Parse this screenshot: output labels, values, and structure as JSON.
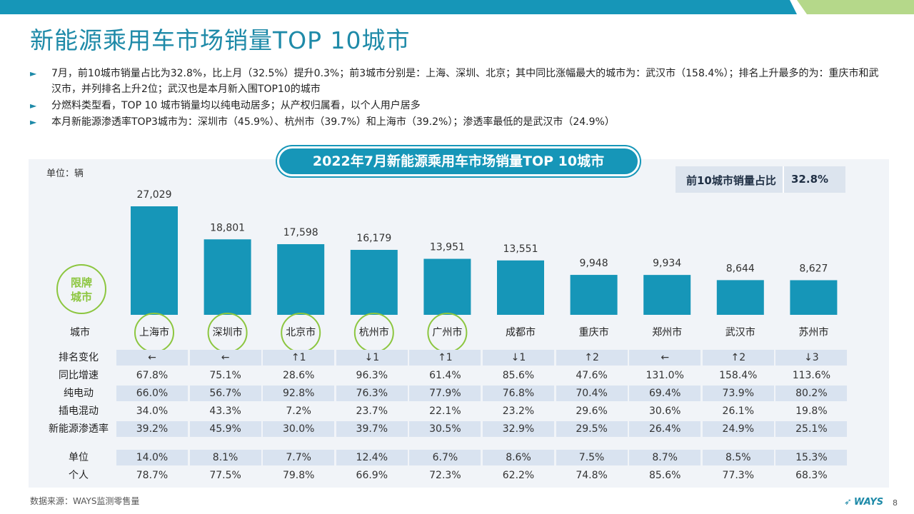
{
  "title": "新能源乘用车市场销量TOP 10城市",
  "bullets": [
    "7月，前10城市销量占比为32.8%，比上月（32.5%）提升0.3%；前3城市分别是：上海、深圳、北京；其中同比涨幅最大的城市为：武汉市（158.4%）；排名上升最多的为：重庆市和武汉市，并列排名上升2位；武汉也是本月新入围TOP10的城市",
    "分燃料类型看，TOP 10 城市销量均以纯电动居多；从产权归属看，以个人用户居多",
    "本月新能源渗透率TOP3城市为：深圳市（45.9%）、杭州市（39.7%）和上海市（39.2%）；渗透率最低的是武汉市（24.9%）"
  ],
  "chart_title": "2022年7月新能源乘用车市场销量TOP 10城市",
  "unit_label": "单位：辆",
  "share_box": {
    "label": "前10城市销量占比",
    "value": "32.8%"
  },
  "restricted_label": [
    "限牌",
    "城市"
  ],
  "colors": {
    "accent": "#1e8aa8",
    "bar": "#1696b8",
    "restricted_circle": "#8cc63f",
    "panel": "#f1f4f8",
    "table_shade": "#d9e3f0",
    "topbar_blue": "#1696b8",
    "topbar_green": "#b5d88a"
  },
  "chart_data": {
    "type": "bar",
    "categories": [
      "上海市",
      "深圳市",
      "北京市",
      "杭州市",
      "广州市",
      "成都市",
      "重庆市",
      "郑州市",
      "武汉市",
      "苏州市"
    ],
    "values": [
      27029,
      18801,
      17598,
      16179,
      13951,
      13551,
      9948,
      9934,
      8644,
      8627
    ],
    "value_labels": [
      "27,029",
      "18,801",
      "17,598",
      "16,179",
      "13,951",
      "13,551",
      "9,948",
      "9,934",
      "8,644",
      "8,627"
    ],
    "restricted_cities": [
      true,
      true,
      true,
      true,
      true,
      false,
      false,
      false,
      false,
      false
    ],
    "title": "2022年7月新能源乘用车市场销量TOP 10城市",
    "xlabel": "城市",
    "ylabel": "单位：辆",
    "ylim": [
      0,
      27029
    ],
    "grid": false
  },
  "table": {
    "city_header": "城市",
    "rows": [
      {
        "label": "排名变化",
        "values": [
          "←",
          "←",
          "↑1",
          "↓1",
          "↑1",
          "↓1",
          "↑2",
          "←",
          "↑2",
          "↓3"
        ],
        "shaded": true
      },
      {
        "label": "同比增速",
        "values": [
          "67.8%",
          "75.1%",
          "28.6%",
          "96.3%",
          "61.4%",
          "85.6%",
          "47.6%",
          "131.0%",
          "158.4%",
          "113.6%"
        ],
        "shaded": false
      },
      {
        "label": "纯电动",
        "values": [
          "66.0%",
          "56.7%",
          "92.8%",
          "76.3%",
          "77.9%",
          "76.8%",
          "70.4%",
          "69.4%",
          "73.9%",
          "80.2%"
        ],
        "shaded": true
      },
      {
        "label": "插电混动",
        "values": [
          "34.0%",
          "43.3%",
          "7.2%",
          "23.7%",
          "22.1%",
          "23.2%",
          "29.6%",
          "30.6%",
          "26.1%",
          "19.8%"
        ],
        "shaded": false
      },
      {
        "label": "新能源渗透率",
        "values": [
          "39.2%",
          "45.9%",
          "30.0%",
          "39.7%",
          "30.5%",
          "32.9%",
          "29.5%",
          "26.4%",
          "24.9%",
          "25.1%"
        ],
        "shaded": true
      },
      {
        "label": "单位",
        "values": [
          "14.0%",
          "8.1%",
          "7.7%",
          "12.4%",
          "6.7%",
          "8.6%",
          "7.5%",
          "8.7%",
          "8.5%",
          "15.3%"
        ],
        "shaded": true
      },
      {
        "label": "个人",
        "values": [
          "78.7%",
          "77.5%",
          "79.8%",
          "66.9%",
          "72.3%",
          "62.2%",
          "74.8%",
          "85.6%",
          "77.3%",
          "68.3%"
        ],
        "shaded": false
      }
    ]
  },
  "source": "数据来源：WAYS监测零售量",
  "logo_text": "WAYS",
  "page_number": "8"
}
